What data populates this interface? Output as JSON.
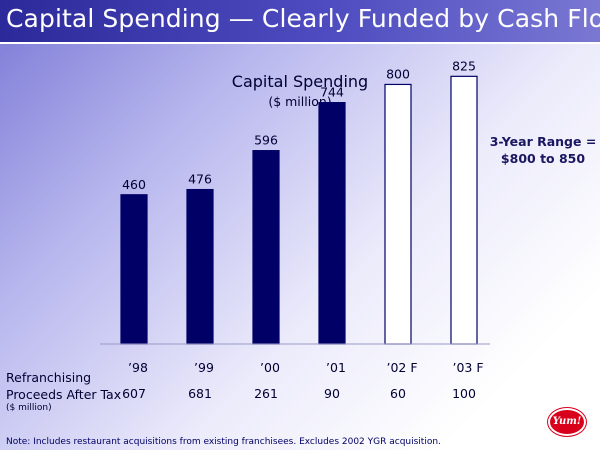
{
  "slide_title": "Capital Spending — Clearly Funded by Cash Flow",
  "chart_data": {
    "type": "bar",
    "title": "Capital Spending",
    "subtitle": "($ million)",
    "categories": [
      "’98",
      "’99",
      "’00",
      "’01",
      "’02 F",
      "’03 F"
    ],
    "values": [
      460,
      476,
      596,
      744,
      800,
      825
    ],
    "forecast": [
      false,
      false,
      false,
      false,
      true,
      true
    ],
    "ylim": [
      0,
      900
    ],
    "grid": false,
    "colors": {
      "actual": "#000066",
      "forecast": "#ffffff",
      "outline": "#000066"
    }
  },
  "range_note": {
    "line1": "3-Year Range =",
    "line2": "$800 to 850"
  },
  "refranchising": {
    "label_line1": "Refranchising",
    "label_line2": "Proceeds After Tax",
    "unit": "($ million)",
    "values": [
      "607",
      "681",
      "261",
      "90",
      "60",
      "100"
    ]
  },
  "footnote": "Note: Includes restaurant acquisitions from existing franchisees. Excludes 2002 YGR acquisition.",
  "logo_text": "Yum!"
}
